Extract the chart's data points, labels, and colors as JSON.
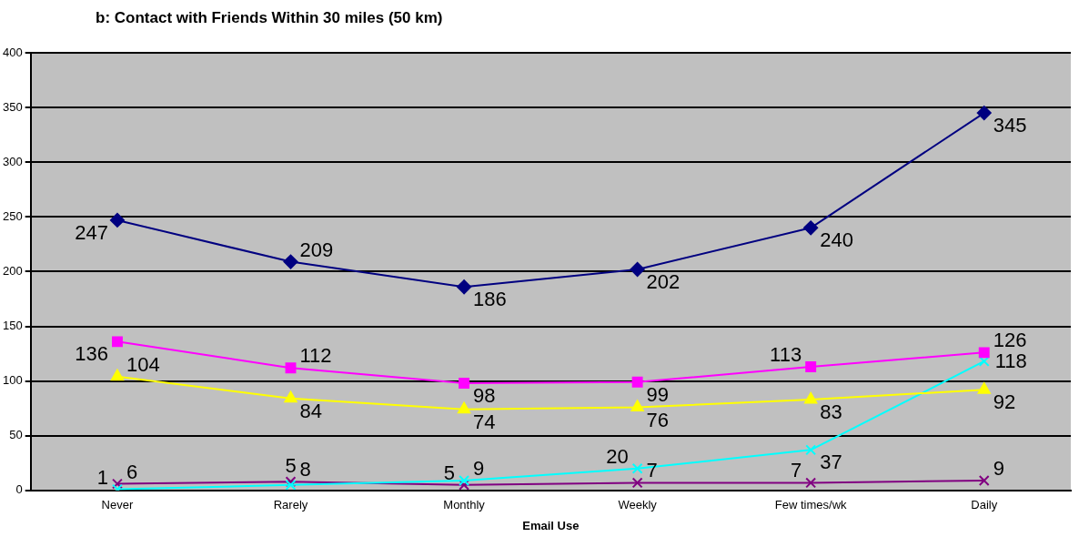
{
  "chart_data": {
    "type": "line",
    "title": "b: Contact with Friends Within 30 miles (50 km)",
    "xlabel": "Email Use",
    "categories": [
      "Never",
      "Rarely",
      "Monthly",
      "Weekly",
      "Few times/wk",
      "Daily"
    ],
    "series": [
      {
        "color": "#000080",
        "marker": "diamond",
        "values": [
          247,
          209,
          186,
          202,
          240,
          345
        ]
      },
      {
        "color": "#ff00ff",
        "marker": "square",
        "values": [
          136,
          112,
          98,
          99,
          113,
          126
        ]
      },
      {
        "color": "#ffff00",
        "marker": "triangle",
        "values": [
          104,
          84,
          74,
          76,
          83,
          92
        ]
      },
      {
        "color": "#00ffff",
        "marker": "cross",
        "values": [
          1,
          5,
          9,
          20,
          37,
          118
        ]
      },
      {
        "color": "#800080",
        "marker": "cross",
        "values": [
          6,
          8,
          5,
          7,
          7,
          9
        ]
      }
    ],
    "ylim": [
      0,
      400
    ],
    "yticks": [
      0,
      50,
      100,
      150,
      200,
      250,
      300,
      350,
      400
    ],
    "grid": "y",
    "legend": false,
    "data_labels": true
  }
}
